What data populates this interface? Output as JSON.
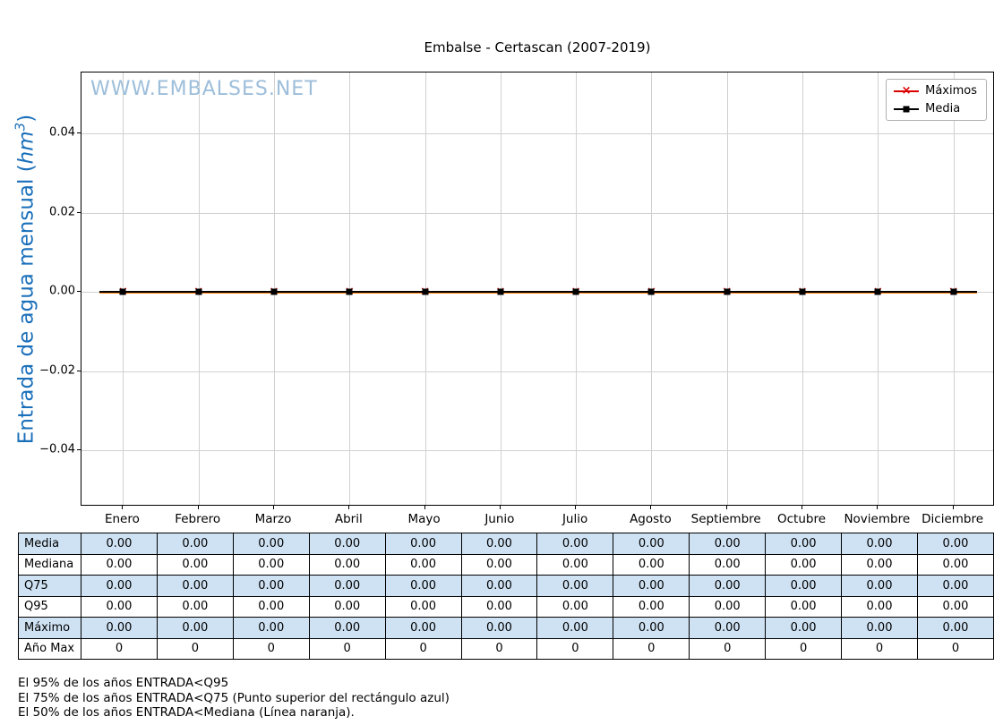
{
  "title": "Embalse - Certascan (2007-2019)",
  "watermark": "WWW.EMBALSES.NET",
  "ylabel": {
    "prefix": "Entrada de agua mensual (",
    "math": "hm",
    "sup": "3",
    "suffix": ")"
  },
  "legend": {
    "items": [
      {
        "label": "Máximos",
        "color": "#dd0000",
        "marker": "x"
      },
      {
        "label": "Media",
        "color": "#000000",
        "marker": "square"
      }
    ]
  },
  "colors": {
    "watermark": "#9dbeda",
    "ylabel": "#1a6fba",
    "table_shade": "#cfe2f3",
    "grid": "#d0d0d0",
    "maximos": "#dd0000",
    "media": "#000000",
    "mediana": "#ff7f0e"
  },
  "chart_data": {
    "type": "line",
    "title": "Embalse - Certascan (2007-2019)",
    "ylabel": "Entrada de agua mensual (hm³)",
    "categories": [
      "Enero",
      "Febrero",
      "Marzo",
      "Abril",
      "Mayo",
      "Junio",
      "Julio",
      "Agosto",
      "Septiembre",
      "Octubre",
      "Noviembre",
      "Diciembre"
    ],
    "series": [
      {
        "name": "Máximos",
        "color": "#dd0000",
        "marker": "x",
        "values": [
          0,
          0,
          0,
          0,
          0,
          0,
          0,
          0,
          0,
          0,
          0,
          0
        ]
      },
      {
        "name": "Media",
        "color": "#000000",
        "marker": "square",
        "values": [
          0,
          0,
          0,
          0,
          0,
          0,
          0,
          0,
          0,
          0,
          0,
          0
        ]
      },
      {
        "name": "Mediana",
        "color": "#ff7f0e",
        "marker": "none",
        "values": [
          0,
          0,
          0,
          0,
          0,
          0,
          0,
          0,
          0,
          0,
          0,
          0
        ]
      }
    ],
    "ylim": [
      -0.0542,
      0.0554
    ],
    "yticks": [
      {
        "v": 0.04,
        "label": "0.04"
      },
      {
        "v": 0.02,
        "label": "0.02"
      },
      {
        "v": 0.0,
        "label": "0.00"
      },
      {
        "v": -0.02,
        "label": "−0.02"
      },
      {
        "v": -0.04,
        "label": "−0.04"
      }
    ],
    "grid": true,
    "legend_position": "upper right"
  },
  "table": {
    "rows": [
      {
        "label": "Media",
        "shaded": true,
        "values": [
          "0.00",
          "0.00",
          "0.00",
          "0.00",
          "0.00",
          "0.00",
          "0.00",
          "0.00",
          "0.00",
          "0.00",
          "0.00",
          "0.00"
        ]
      },
      {
        "label": "Mediana",
        "shaded": false,
        "values": [
          "0.00",
          "0.00",
          "0.00",
          "0.00",
          "0.00",
          "0.00",
          "0.00",
          "0.00",
          "0.00",
          "0.00",
          "0.00",
          "0.00"
        ]
      },
      {
        "label": "Q75",
        "shaded": true,
        "values": [
          "0.00",
          "0.00",
          "0.00",
          "0.00",
          "0.00",
          "0.00",
          "0.00",
          "0.00",
          "0.00",
          "0.00",
          "0.00",
          "0.00"
        ]
      },
      {
        "label": "Q95",
        "shaded": false,
        "values": [
          "0.00",
          "0.00",
          "0.00",
          "0.00",
          "0.00",
          "0.00",
          "0.00",
          "0.00",
          "0.00",
          "0.00",
          "0.00",
          "0.00"
        ]
      },
      {
        "label": "Máximo",
        "shaded": true,
        "values": [
          "0.00",
          "0.00",
          "0.00",
          "0.00",
          "0.00",
          "0.00",
          "0.00",
          "0.00",
          "0.00",
          "0.00",
          "0.00",
          "0.00"
        ]
      },
      {
        "label": "Año Max",
        "shaded": false,
        "values": [
          "0",
          "0",
          "0",
          "0",
          "0",
          "0",
          "0",
          "0",
          "0",
          "0",
          "0",
          "0"
        ]
      }
    ]
  },
  "footnotes": [
    "El 95% de los años ENTRADA<Q95",
    "El 75% de los años ENTRADA<Q75 (Punto superior del rectángulo azul)",
    "El 50% de los años ENTRADA<Mediana (Línea naranja)."
  ]
}
